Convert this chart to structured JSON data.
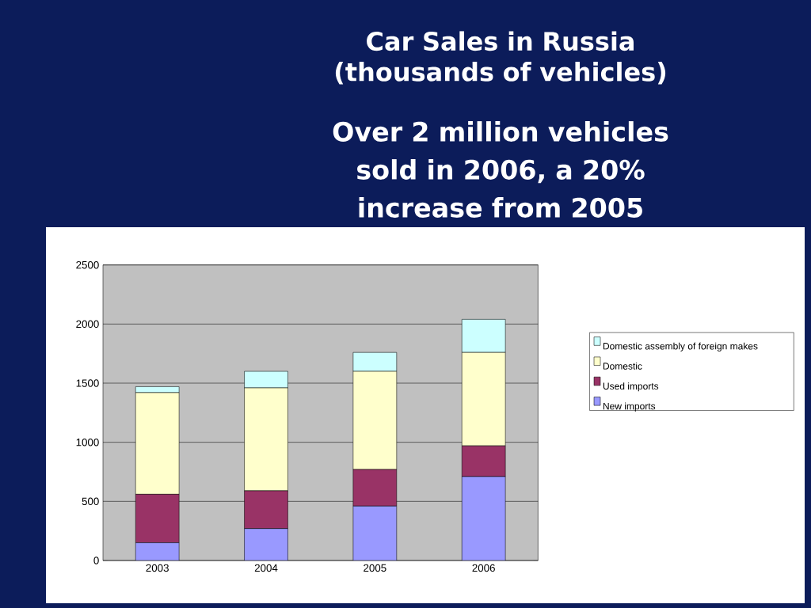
{
  "chart_data": {
    "type": "bar",
    "stacked": true,
    "title": "Car Sales in Russia (thousands of vehicles)",
    "subtitle": "Over 2 million vehicles sold in 2006, a 20% increase from 2005",
    "categories": [
      "2003",
      "2004",
      "2005",
      "2006"
    ],
    "series": [
      {
        "name": "New imports",
        "color": "#9999ff",
        "values": [
          150,
          270,
          460,
          710
        ]
      },
      {
        "name": "Used imports",
        "color": "#993366",
        "values": [
          410,
          320,
          310,
          260
        ]
      },
      {
        "name": "Domestic",
        "color": "#ffffcc",
        "values": [
          860,
          870,
          830,
          790
        ]
      },
      {
        "name": "Domestic assembly of foreign makes",
        "color": "#ccffff",
        "values": [
          50,
          140,
          160,
          280
        ]
      }
    ],
    "ylim": [
      0,
      2500
    ],
    "yticks": [
      0,
      500,
      1000,
      1500,
      2000,
      2500
    ],
    "grid": "y",
    "legend": "right"
  }
}
